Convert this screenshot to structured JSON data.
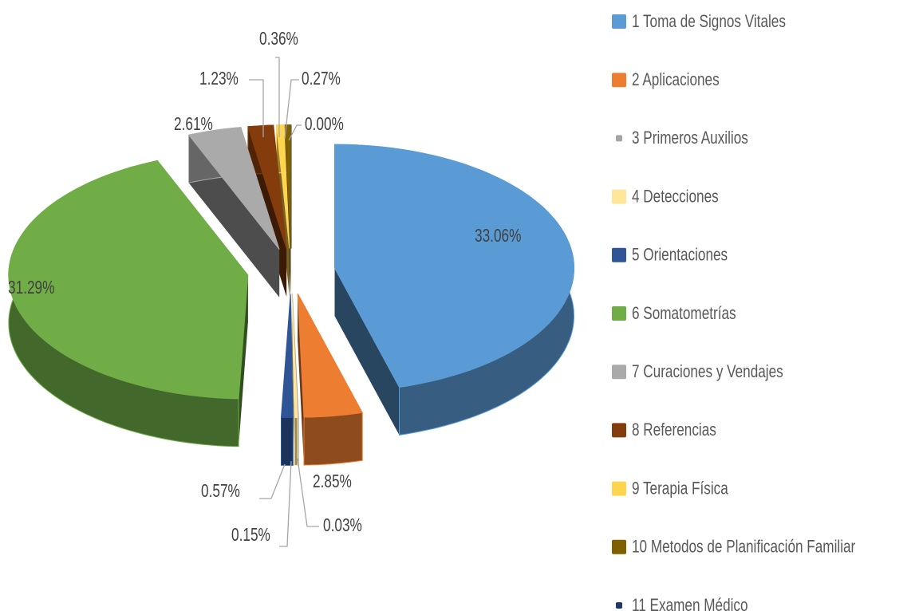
{
  "chart_data": {
    "type": "pie",
    "categories": [
      "1 Toma de Signos Vitales",
      "2 Aplicaciones",
      "3 Primeros Auxilios",
      "4 Detecciones",
      "5 Orientaciones",
      "6 Somatometrías",
      "7 Curaciones y Vendajes",
      "8 Referencias",
      "9 Terapia Física",
      "10 Metodos de Planificación Familiar",
      "11 Examen Médico"
    ],
    "values": [
      33.06,
      2.85,
      0.03,
      0.15,
      0.57,
      31.29,
      2.61,
      1.23,
      0.36,
      0.27,
      0.0
    ],
    "value_labels": [
      "33.06%",
      "2.85%",
      "0.03%",
      "0.15%",
      "0.57%",
      "31.29%",
      "2.61%",
      "1.23%",
      "0.36%",
      "0.27%",
      "0.00%"
    ],
    "colors": [
      "#5b9bd5",
      "#ed7d31",
      "#a5a5a5",
      "#ffe699",
      "#2f5597",
      "#70ad47",
      "#aaaaaa",
      "#843c0c",
      "#ffd54f",
      "#7f6000",
      "#203864"
    ],
    "legend": "right"
  }
}
